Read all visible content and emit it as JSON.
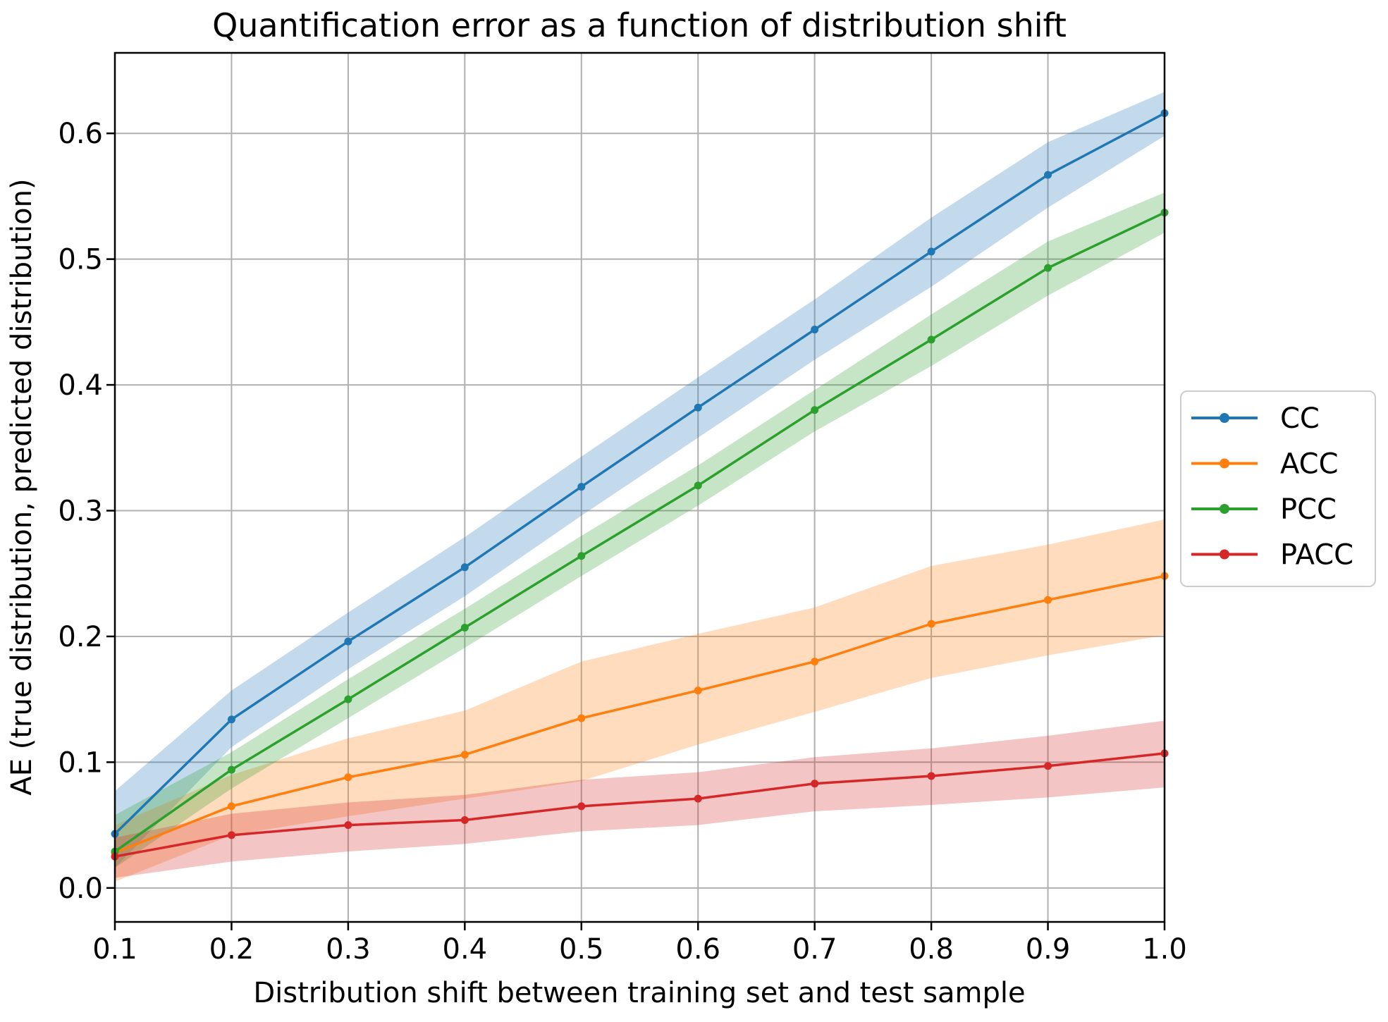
{
  "chart_data": {
    "type": "line",
    "title": "Quantification error as a function of distribution shift",
    "xlabel": "Distribution shift between training set and test sample",
    "ylabel": "AE (true distribution, predicted distribution)",
    "x": [
      0.1,
      0.2,
      0.3,
      0.4,
      0.5,
      0.6,
      0.7,
      0.8,
      0.9,
      1.0
    ],
    "xlim": [
      0.1,
      1.0
    ],
    "ylim": [
      -0.027,
      0.664
    ],
    "xticks": [
      0.1,
      0.2,
      0.3,
      0.4,
      0.5,
      0.6,
      0.7,
      0.8,
      0.9,
      1.0
    ],
    "xtick_labels": [
      "0.1",
      "0.2",
      "0.3",
      "0.4",
      "0.5",
      "0.6",
      "0.7",
      "0.8",
      "0.9",
      "1.0"
    ],
    "yticks": [
      0.0,
      0.1,
      0.2,
      0.3,
      0.4,
      0.5,
      0.6
    ],
    "ytick_labels": [
      "0.0",
      "0.1",
      "0.2",
      "0.3",
      "0.4",
      "0.5",
      "0.6"
    ],
    "grid": true,
    "grid_color": "#b0b0b0",
    "legend_position": "right-outside",
    "band_opacity": 0.27,
    "series": [
      {
        "name": "CC",
        "color": "#1f77b4",
        "values": [
          0.043,
          0.134,
          0.196,
          0.255,
          0.319,
          0.382,
          0.444,
          0.506,
          0.567,
          0.616
        ],
        "band_low": [
          0.016,
          0.112,
          0.174,
          0.232,
          0.296,
          0.358,
          0.42,
          0.478,
          0.541,
          0.598
        ],
        "band_high": [
          0.077,
          0.157,
          0.219,
          0.279,
          0.343,
          0.406,
          0.468,
          0.533,
          0.593,
          0.633
        ]
      },
      {
        "name": "ACC",
        "color": "#ff7f0e",
        "values": [
          0.028,
          0.065,
          0.088,
          0.106,
          0.135,
          0.157,
          0.18,
          0.21,
          0.229,
          0.248
        ],
        "band_low": [
          0.005,
          0.042,
          0.057,
          0.071,
          0.085,
          0.114,
          0.14,
          0.167,
          0.185,
          0.201
        ],
        "band_high": [
          0.05,
          0.09,
          0.119,
          0.141,
          0.18,
          0.202,
          0.223,
          0.256,
          0.273,
          0.293
        ]
      },
      {
        "name": "PCC",
        "color": "#2ca02c",
        "values": [
          0.029,
          0.094,
          0.15,
          0.207,
          0.264,
          0.32,
          0.38,
          0.436,
          0.493,
          0.537
        ],
        "band_low": [
          0.016,
          0.079,
          0.135,
          0.191,
          0.248,
          0.304,
          0.363,
          0.415,
          0.471,
          0.521
        ],
        "band_high": [
          0.058,
          0.108,
          0.166,
          0.222,
          0.28,
          0.336,
          0.396,
          0.456,
          0.514,
          0.553
        ]
      },
      {
        "name": "PACC",
        "color": "#d62728",
        "values": [
          0.025,
          0.042,
          0.05,
          0.054,
          0.065,
          0.071,
          0.083,
          0.089,
          0.097,
          0.107
        ],
        "band_low": [
          0.008,
          0.021,
          0.029,
          0.035,
          0.045,
          0.05,
          0.061,
          0.066,
          0.072,
          0.08
        ],
        "band_high": [
          0.04,
          0.059,
          0.068,
          0.074,
          0.086,
          0.092,
          0.104,
          0.111,
          0.121,
          0.133
        ]
      }
    ]
  }
}
